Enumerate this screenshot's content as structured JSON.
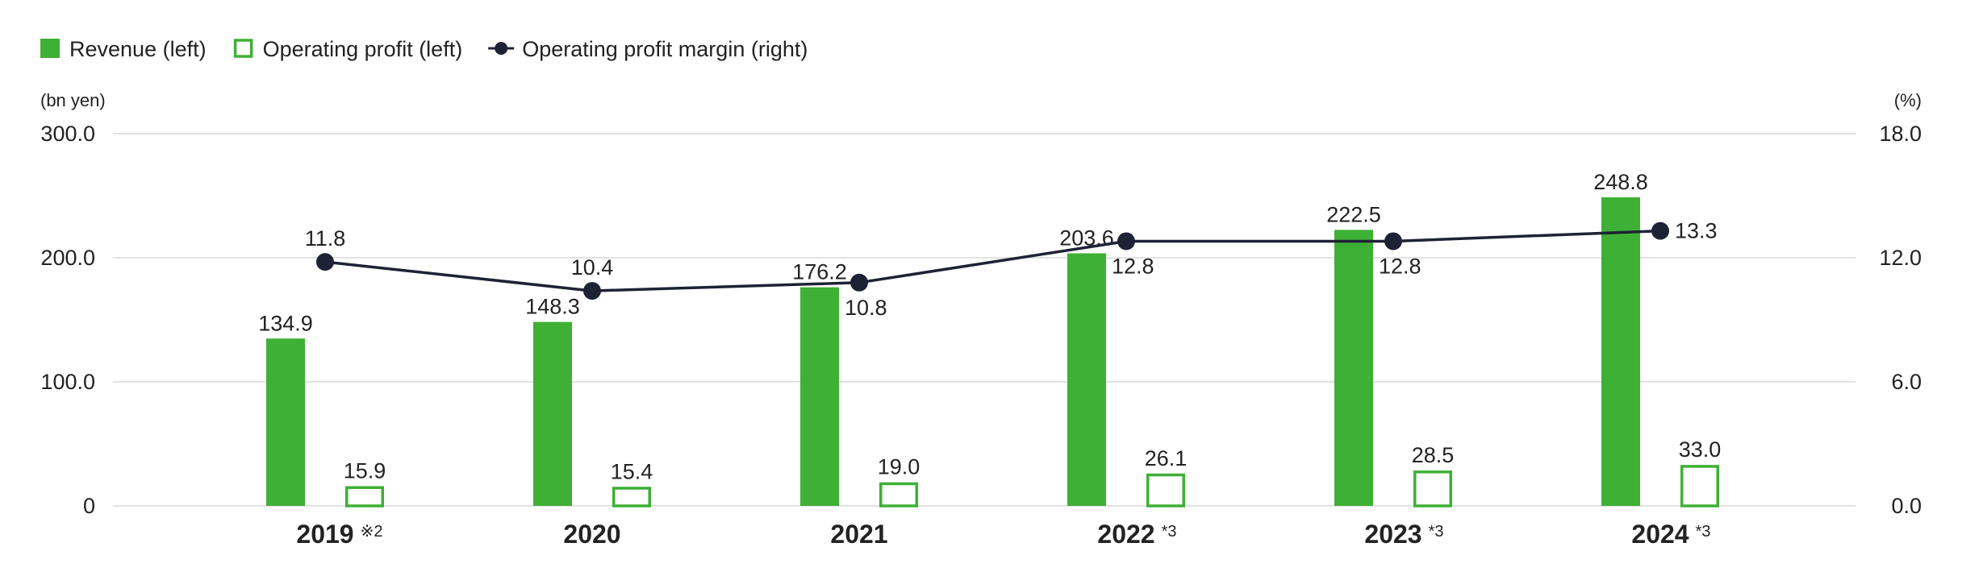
{
  "colors": {
    "revenue": "#3eb035",
    "operating_profit": "#3eb035",
    "margin_line": "#1e2235",
    "grid": "#d9d9d9",
    "text": "#222222"
  },
  "legend": [
    {
      "label": "Revenue (left)",
      "marker": "filled-square"
    },
    {
      "label": "Operating profit (left)",
      "marker": "outlined-square"
    },
    {
      "label": "Operating profit margin (right)",
      "marker": "line-dot"
    }
  ],
  "chart_data": {
    "type": "bar",
    "categories": [
      "2019",
      "2020",
      "2021",
      "2022",
      "2023",
      "2024"
    ],
    "category_notes": [
      "※2",
      "",
      "",
      "*3",
      "*3",
      "*3"
    ],
    "y_left": {
      "unit": "(bn yen)",
      "range": [
        0,
        300
      ],
      "ticks": [
        0,
        100,
        200,
        300
      ],
      "tick_labels": [
        "0",
        "100.0",
        "200.0",
        "300.0"
      ]
    },
    "y_right": {
      "unit": "(%)",
      "range": [
        0,
        18
      ],
      "ticks": [
        0,
        6,
        12,
        18
      ],
      "tick_labels": [
        "0.0",
        "6.0",
        "12.0",
        "18.0"
      ]
    },
    "grid": true,
    "legend_position": "top-left",
    "series": [
      {
        "name": "Revenue (left)",
        "type": "bar",
        "axis": "left",
        "values": [
          134.9,
          148.3,
          176.2,
          203.6,
          222.5,
          248.8
        ],
        "labels": [
          "134.9",
          "148.3",
          "176.2",
          "203.6",
          "222.5",
          "248.8"
        ]
      },
      {
        "name": "Operating profit (left)",
        "type": "bar-outline",
        "axis": "left",
        "values": [
          15.9,
          15.4,
          19.0,
          26.1,
          28.5,
          33.0
        ],
        "labels": [
          "15.9",
          "15.4",
          "19.0",
          "26.1",
          "28.5",
          "33.0"
        ]
      },
      {
        "name": "Operating profit margin (right)",
        "type": "line",
        "axis": "right",
        "values": [
          11.8,
          10.4,
          10.8,
          12.8,
          12.8,
          13.3
        ],
        "labels": [
          "11.8",
          "10.4",
          "10.8",
          "12.8",
          "12.8",
          "13.3"
        ],
        "label_positions": [
          "above",
          "above",
          "below",
          "below",
          "below",
          "right"
        ]
      }
    ]
  }
}
